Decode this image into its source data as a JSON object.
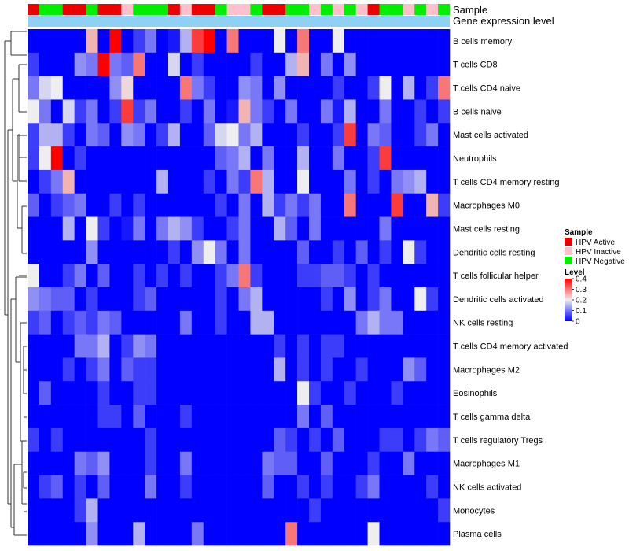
{
  "chart_data": {
    "type": "heatmap",
    "annotation_labels": [
      "Sample",
      "Gene expression level"
    ],
    "sample_groups": [
      "HPV Active",
      "HPV Negative",
      "HPV Negative",
      "HPV Active",
      "HPV Active",
      "HPV Negative",
      "HPV Active",
      "HPV Active",
      "HPV Inactive",
      "HPV Negative",
      "HPV Negative",
      "HPV Negative",
      "HPV Active",
      "HPV Inactive",
      "HPV Active",
      "HPV Active",
      "HPV Negative",
      "HPV Inactive",
      "HPV Inactive",
      "HPV Negative",
      "HPV Active",
      "HPV Active",
      "HPV Negative",
      "HPV Negative",
      "HPV Inactive",
      "HPV Negative",
      "HPV Inactive",
      "HPV Negative",
      "HPV Inactive",
      "HPV Active",
      "HPV Negative",
      "HPV Negative",
      "HPV Inactive",
      "HPV Negative",
      "HPV Inactive",
      "HPV Negative"
    ],
    "rows": [
      "B cells memory",
      "T cells CD8",
      "T cells CD4 naive",
      "B cells naive",
      "Mast cells activated",
      "Neutrophils",
      "T cells CD4 memory resting",
      "Macrophages M0",
      "Mast cells resting",
      "Dendritic cells resting",
      "T cells follicular helper",
      "Dendritic cells activated",
      "NK cells resting",
      "T cells CD4 memory activated",
      "Macrophages M2",
      "Eosinophils",
      "T cells gamma delta",
      "T cells regulatory  Tregs",
      "Macrophages M1",
      "NK cells activated",
      "Monocytes",
      "Plasma cells"
    ],
    "values": [
      [
        0,
        0,
        0,
        0,
        0,
        0.25,
        0,
        0.4,
        0,
        0.05,
        0.1,
        0,
        0.02,
        0.15,
        0.35,
        0.4,
        0,
        0.3,
        0,
        0,
        0,
        0.2,
        0,
        0.3,
        0,
        0,
        0.2,
        0,
        0,
        0,
        0,
        0,
        0,
        0,
        0,
        0
      ],
      [
        0.05,
        0,
        0,
        0,
        0.12,
        0.1,
        0.4,
        0.1,
        0.08,
        0.3,
        0,
        0,
        0.18,
        0,
        0.05,
        0,
        0,
        0,
        0,
        0.05,
        0,
        0,
        0.15,
        0.25,
        0,
        0.1,
        0,
        0.12,
        0,
        0,
        0,
        0,
        0,
        0,
        0,
        0
      ],
      [
        0.1,
        0.18,
        0.2,
        0,
        0,
        0,
        0,
        0.12,
        0.22,
        0,
        0,
        0,
        0,
        0.3,
        0.1,
        0.05,
        0,
        0,
        0.12,
        0.1,
        0,
        0.12,
        0,
        0,
        0,
        0,
        0.05,
        0,
        0,
        0.05,
        0.2,
        0,
        0.15,
        0,
        0.05,
        0.3
      ],
      [
        0.2,
        0.1,
        0,
        0.18,
        0.05,
        0.1,
        0,
        0.05,
        0.35,
        0.05,
        0.1,
        0,
        0,
        0.05,
        0,
        0.1,
        0,
        0.02,
        0.25,
        0.1,
        0.05,
        0,
        0.1,
        0,
        0,
        0.1,
        0.02,
        0.15,
        0,
        0,
        0.1,
        0,
        0,
        0.05,
        0,
        0.05
      ],
      [
        0.05,
        0.15,
        0.15,
        0.05,
        0,
        0.1,
        0.08,
        0,
        0.12,
        0.1,
        0,
        0.05,
        0.15,
        0,
        0,
        0.08,
        0.18,
        0.2,
        0.1,
        0.15,
        0,
        0,
        0,
        0.05,
        0,
        0,
        0.05,
        0.35,
        0,
        0.1,
        0.08,
        0,
        0,
        0.05,
        0.1,
        0
      ],
      [
        0.05,
        0.2,
        0.4,
        0,
        0.05,
        0,
        0,
        0,
        0,
        0,
        0,
        0,
        0,
        0,
        0,
        0,
        0.08,
        0.1,
        0.15,
        0,
        0.1,
        0,
        0,
        0.15,
        0,
        0,
        0.1,
        0,
        0,
        0.05,
        0.35,
        0,
        0,
        0,
        0,
        0
      ],
      [
        0,
        0.05,
        0.1,
        0.25,
        0,
        0,
        0,
        0,
        0,
        0,
        0,
        0.15,
        0,
        0,
        0,
        0.05,
        0,
        0.1,
        0.05,
        0.3,
        0.15,
        0,
        0,
        0.2,
        0,
        0,
        0,
        0.1,
        0,
        0.05,
        0,
        0.1,
        0.12,
        0.15,
        0,
        0
      ],
      [
        0.08,
        0,
        0.05,
        0.08,
        0.1,
        0,
        0,
        0.05,
        0,
        0.05,
        0,
        0,
        0,
        0,
        0,
        0,
        0.05,
        0,
        0.1,
        0,
        0.15,
        0.05,
        0.1,
        0.05,
        0.1,
        0,
        0,
        0.3,
        0,
        0,
        0,
        0.35,
        0,
        0,
        0.25,
        0.05
      ],
      [
        0,
        0,
        0,
        0.15,
        0,
        0.2,
        0.05,
        0,
        0.02,
        0.1,
        0,
        0.1,
        0.15,
        0.12,
        0.05,
        0,
        0,
        0.05,
        0.1,
        0,
        0,
        0.15,
        0.08,
        0,
        0.1,
        0,
        0,
        0,
        0,
        0,
        0.1,
        0,
        0,
        0,
        0,
        0
      ],
      [
        0,
        0,
        0,
        0,
        0,
        0.12,
        0,
        0,
        0,
        0,
        0,
        0,
        0.05,
        0,
        0.12,
        0.2,
        0.1,
        0,
        0.1,
        0,
        0,
        0,
        0,
        0.08,
        0,
        0,
        0.05,
        0,
        0.08,
        0,
        0.05,
        0,
        0.2,
        0.05,
        0,
        0
      ],
      [
        0.2,
        0,
        0,
        0.05,
        0.1,
        0,
        0.08,
        0,
        0,
        0.05,
        0,
        0.05,
        0,
        0.05,
        0,
        0,
        0.05,
        0.1,
        0.3,
        0.05,
        0,
        0,
        0,
        0.05,
        0.05,
        0.08,
        0.08,
        0.05,
        0,
        0.05,
        0,
        0,
        0,
        0,
        0,
        0
      ],
      [
        0.12,
        0.1,
        0.08,
        0.08,
        0,
        0.05,
        0,
        0,
        0,
        0.05,
        0.08,
        0,
        0,
        0,
        0,
        0,
        0.05,
        0,
        0.1,
        0.15,
        0,
        0,
        0,
        0,
        0,
        0.05,
        0,
        0.12,
        0,
        0.05,
        0.1,
        0,
        0,
        0.2,
        0.05,
        0
      ],
      [
        0.05,
        0.08,
        0,
        0.05,
        0.08,
        0.05,
        0.1,
        0.08,
        0,
        0,
        0,
        0,
        0,
        0.1,
        0,
        0,
        0.05,
        0,
        0,
        0.15,
        0.15,
        0,
        0,
        0,
        0,
        0,
        0,
        0,
        0.1,
        0.15,
        0.1,
        0.1,
        0,
        0,
        0,
        0
      ],
      [
        0,
        0,
        0,
        0,
        0.1,
        0.1,
        0.15,
        0,
        0.05,
        0.12,
        0.1,
        0,
        0,
        0,
        0,
        0,
        0,
        0,
        0,
        0,
        0,
        0.05,
        0,
        0.05,
        0,
        0.05,
        0.05,
        0,
        0,
        0,
        0,
        0,
        0,
        0,
        0,
        0
      ],
      [
        0,
        0,
        0,
        0.05,
        0,
        0.05,
        0.1,
        0,
        0.08,
        0.05,
        0.05,
        0,
        0,
        0,
        0,
        0,
        0,
        0,
        0,
        0,
        0,
        0.15,
        0,
        0.05,
        0,
        0.05,
        0,
        0,
        0.05,
        0,
        0,
        0,
        0.12,
        0.08,
        0,
        0
      ],
      [
        0,
        0.08,
        0,
        0,
        0,
        0,
        0.05,
        0,
        0,
        0.05,
        0.05,
        0,
        0,
        0,
        0,
        0,
        0,
        0,
        0,
        0,
        0,
        0,
        0,
        0.2,
        0.05,
        0,
        0,
        0.05,
        0,
        0,
        0,
        0.05,
        0,
        0,
        0,
        0
      ],
      [
        0,
        0,
        0,
        0,
        0,
        0,
        0.05,
        0.05,
        0,
        0.08,
        0,
        0,
        0,
        0.05,
        0,
        0,
        0,
        0,
        0,
        0,
        0,
        0,
        0,
        0.1,
        0,
        0.08,
        0,
        0,
        0,
        0,
        0,
        0,
        0,
        0,
        0,
        0
      ],
      [
        0.05,
        0,
        0.05,
        0,
        0,
        0,
        0,
        0,
        0,
        0,
        0.05,
        0,
        0,
        0,
        0,
        0,
        0,
        0,
        0,
        0,
        0,
        0.08,
        0.05,
        0,
        0.05,
        0,
        0.08,
        0,
        0,
        0,
        0.05,
        0.05,
        0,
        0.05,
        0.1,
        0.08
      ],
      [
        0,
        0,
        0,
        0,
        0.1,
        0.08,
        0.12,
        0,
        0,
        0,
        0.05,
        0,
        0,
        0.1,
        0,
        0,
        0,
        0,
        0,
        0,
        0.1,
        0.08,
        0.08,
        0,
        0,
        0.08,
        0,
        0,
        0,
        0.05,
        0,
        0,
        0.1,
        0,
        0,
        0
      ],
      [
        0,
        0.05,
        0.08,
        0,
        0.05,
        0,
        0.08,
        0,
        0,
        0,
        0.1,
        0,
        0,
        0.05,
        0,
        0,
        0,
        0,
        0,
        0,
        0.08,
        0,
        0,
        0.05,
        0,
        0.05,
        0,
        0,
        0.05,
        0.1,
        0,
        0,
        0,
        0,
        0.05,
        0
      ],
      [
        0,
        0,
        0,
        0,
        0.05,
        0.15,
        0,
        0,
        0,
        0,
        0,
        0,
        0,
        0,
        0,
        0,
        0,
        0,
        0,
        0,
        0,
        0,
        0,
        0,
        0.05,
        0,
        0,
        0,
        0,
        0,
        0,
        0,
        0,
        0,
        0,
        0.05
      ],
      [
        0,
        0,
        0,
        0,
        0,
        0.12,
        0,
        0,
        0,
        0.15,
        0,
        0,
        0,
        0,
        0.1,
        0,
        0,
        0,
        0,
        0,
        0,
        0,
        0.3,
        0,
        0,
        0,
        0,
        0,
        0,
        0.2,
        0,
        0,
        0,
        0,
        0,
        0
      ]
    ],
    "legend": {
      "sample_title": "Sample",
      "sample_entries": [
        {
          "label": "HPV Active",
          "color": "#ee0000"
        },
        {
          "label": "HPV Inactive",
          "color": "#ffc0cb"
        },
        {
          "label": "HPV Negative",
          "color": "#00ee00"
        }
      ],
      "level_title": "Level",
      "level_ticks": [
        "0.4",
        "0.3",
        "0.2",
        "0.1",
        "0"
      ],
      "level_range": [
        0,
        0.4
      ],
      "colors": {
        "low": "#0000ff",
        "mid": "#eeeeee",
        "high": "#ff0000"
      }
    },
    "expression_bar_color": "#8fd0f5",
    "dendrogram_order": "rows clustered (hierarchical)"
  }
}
